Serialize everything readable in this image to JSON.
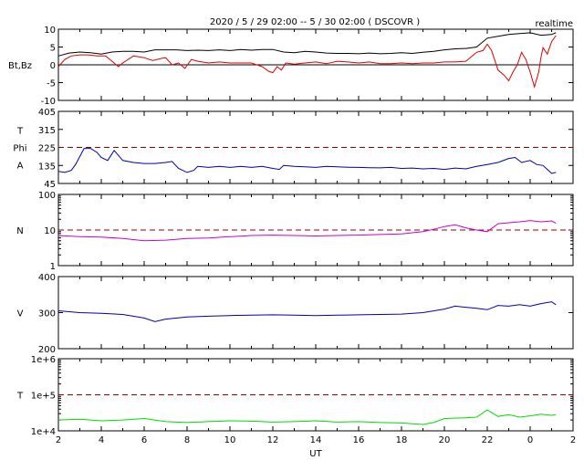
{
  "chart_data": {
    "title": "2020 / 5 / 29  02:00 --  5 / 30  02:00 ( DSCOVR )",
    "badge": "realtime",
    "xlabel": "UT",
    "x_ticks": [
      "2",
      "4",
      "6",
      "8",
      "10",
      "12",
      "14",
      "16",
      "18",
      "20",
      "22",
      "0",
      "2"
    ],
    "x_range": [
      2,
      26
    ],
    "grid": false,
    "panels": [
      {
        "type": "line",
        "ylabel_lines": [
          "Bt,Bz"
        ],
        "yticks": [
          "10",
          "5",
          "0",
          "-5",
          "-10"
        ],
        "ylim": [
          -10,
          10
        ],
        "zero_line": 0,
        "series": [
          {
            "key": "Bt",
            "color": "#000000",
            "x": [
              2.0,
              2.5,
              3.0,
              3.5,
              4.0,
              4.5,
              5.0,
              5.5,
              6.0,
              6.5,
              7.0,
              7.5,
              8.0,
              8.5,
              9.0,
              9.5,
              10.0,
              10.5,
              11.0,
              11.5,
              12.0,
              12.5,
              13.0,
              13.5,
              14.0,
              14.5,
              15.0,
              15.5,
              16.0,
              16.5,
              17.0,
              17.5,
              18.0,
              18.5,
              19.0,
              19.5,
              20.0,
              20.5,
              21.0,
              21.5,
              22.0,
              22.5,
              23.0,
              23.5,
              24.0,
              24.5,
              25.0,
              25.2
            ],
            "y": [
              2.5,
              3.3,
              3.6,
              3.4,
              3.0,
              3.6,
              3.8,
              3.8,
              3.6,
              4.2,
              4.2,
              4.2,
              4.0,
              4.1,
              4.0,
              4.2,
              4.0,
              4.3,
              4.1,
              4.3,
              4.3,
              3.6,
              3.4,
              3.8,
              3.6,
              3.3,
              3.2,
              3.2,
              3.1,
              3.3,
              3.1,
              3.2,
              3.4,
              3.2,
              3.5,
              3.8,
              4.2,
              4.5,
              4.6,
              5.0,
              7.5,
              8.0,
              8.5,
              8.8,
              9.0,
              8.3,
              8.5,
              9.0
            ]
          },
          {
            "key": "Bz",
            "color": "#e00000",
            "x": [
              2.0,
              2.3,
              2.6,
              3.0,
              3.4,
              3.8,
              4.2,
              4.5,
              4.8,
              5.0,
              5.5,
              6.0,
              6.4,
              6.8,
              7.0,
              7.3,
              7.6,
              7.9,
              8.2,
              8.5,
              9.0,
              9.5,
              10.0,
              10.5,
              11.0,
              11.5,
              11.8,
              12.0,
              12.2,
              12.4,
              12.6,
              13.0,
              13.5,
              14.0,
              14.5,
              15.0,
              15.5,
              16.0,
              16.5,
              17.0,
              17.5,
              18.0,
              18.5,
              19.0,
              19.5,
              20.0,
              20.5,
              21.0,
              21.5,
              21.8,
              22.0,
              22.2,
              22.5,
              22.8,
              23.0,
              23.2,
              23.4,
              23.6,
              23.8,
              24.0,
              24.2,
              24.4,
              24.5,
              24.6,
              24.8,
              25.0,
              25.2
            ],
            "y": [
              -0.5,
              1.5,
              2.5,
              2.8,
              2.8,
              2.5,
              2.5,
              1.0,
              -0.5,
              0.5,
              2.5,
              2.0,
              1.2,
              1.8,
              2.0,
              0.0,
              0.5,
              -1.0,
              1.5,
              1.0,
              0.5,
              0.8,
              0.5,
              0.5,
              0.5,
              -0.5,
              -1.8,
              -2.2,
              -0.5,
              -1.5,
              0.5,
              0.2,
              0.5,
              0.8,
              0.3,
              1.0,
              0.8,
              0.5,
              0.8,
              0.3,
              0.3,
              0.5,
              0.3,
              0.5,
              0.5,
              0.8,
              0.8,
              1.0,
              3.5,
              4.0,
              5.8,
              4.0,
              -1.5,
              -3.0,
              -4.5,
              -2.0,
              0.0,
              3.5,
              1.5,
              -2.0,
              -6.2,
              -2.0,
              2.0,
              4.8,
              3.0,
              6.5,
              8.2
            ]
          }
        ]
      },
      {
        "type": "line",
        "ylabel_lines": [
          "T",
          "Phi",
          "A"
        ],
        "yticks": [
          "405",
          "315",
          "225",
          "135",
          "45"
        ],
        "ylim": [
          45,
          405
        ],
        "reference_line": {
          "value": 225,
          "color": "#990000",
          "style": "dashed"
        },
        "series": [
          {
            "key": "Phi",
            "color": "#0000b0",
            "x": [
              2.0,
              2.3,
              2.6,
              2.8,
              3.0,
              3.2,
              3.5,
              3.8,
              4.0,
              4.3,
              4.6,
              5.0,
              5.5,
              6.0,
              6.5,
              7.0,
              7.3,
              7.6,
              8.0,
              8.3,
              8.5,
              9.0,
              9.5,
              10.0,
              10.5,
              11.0,
              11.5,
              12.0,
              12.3,
              12.5,
              13.0,
              13.5,
              14.0,
              14.5,
              15.0,
              15.5,
              16.0,
              16.5,
              17.0,
              17.5,
              18.0,
              18.5,
              19.0,
              19.5,
              20.0,
              20.5,
              21.0,
              21.5,
              22.0,
              22.5,
              23.0,
              23.3,
              23.6,
              24.0,
              24.3,
              24.6,
              24.8,
              25.0,
              25.2
            ],
            "y": [
              105,
              100,
              110,
              140,
              180,
              220,
              220,
              200,
              175,
              160,
              210,
              160,
              150,
              145,
              145,
              150,
              155,
              120,
              100,
              110,
              130,
              125,
              130,
              125,
              130,
              125,
              130,
              120,
              115,
              135,
              130,
              128,
              125,
              130,
              128,
              126,
              125,
              124,
              123,
              125,
              120,
              122,
              118,
              120,
              115,
              122,
              118,
              130,
              140,
              150,
              170,
              175,
              150,
              160,
              140,
              135,
              115,
              95,
              100
            ]
          }
        ]
      },
      {
        "type": "line",
        "log": true,
        "ylabel_lines": [
          "N"
        ],
        "yticks": [
          "100",
          "10",
          "1"
        ],
        "ylim": [
          1,
          100
        ],
        "reference_line": {
          "value": 10,
          "color": "#990000",
          "style": "dashed"
        },
        "series": [
          {
            "key": "N",
            "color": "#cc00cc",
            "x": [
              2,
              3,
              4,
              5,
              6,
              7,
              8,
              9,
              10,
              11,
              12,
              13,
              14,
              15,
              16,
              17,
              18,
              19,
              19.5,
              20,
              20.5,
              21,
              21.5,
              22,
              22.5,
              23,
              23.5,
              24,
              24.5,
              25,
              25.2
            ],
            "y": [
              7.0,
              6.5,
              6.3,
              5.8,
              5.0,
              5.2,
              5.8,
              6.0,
              6.5,
              7.0,
              7.2,
              7.0,
              6.8,
              7.0,
              7.2,
              7.5,
              7.8,
              9.0,
              10.5,
              12.5,
              14.0,
              11.5,
              10.0,
              9.0,
              15.0,
              16.0,
              17.0,
              18.5,
              17.0,
              18.0,
              15.5
            ]
          }
        ]
      },
      {
        "type": "line",
        "ylabel_lines": [
          "V"
        ],
        "yticks": [
          "400",
          "300",
          "200"
        ],
        "ylim": [
          200,
          400
        ],
        "series": [
          {
            "key": "V",
            "color": "#0000b0",
            "x": [
              2,
              3,
              4,
              5,
              6,
              6.5,
              7,
              8,
              9,
              10,
              11,
              12,
              13,
              14,
              15,
              16,
              17,
              18,
              19,
              20,
              20.5,
              21,
              21.5,
              22,
              22.5,
              23,
              23.5,
              24,
              24.5,
              25,
              25.2
            ],
            "y": [
              305,
              300,
              298,
              295,
              285,
              275,
              282,
              288,
              290,
              292,
              293,
              294,
              293,
              292,
              293,
              294,
              295,
              296,
              300,
              310,
              318,
              315,
              312,
              308,
              320,
              318,
              322,
              318,
              325,
              330,
              322
            ]
          }
        ]
      },
      {
        "type": "line",
        "log": true,
        "ylabel_lines": [
          "T"
        ],
        "yticks": [
          "1e+6",
          "1e+5",
          "1e+4"
        ],
        "ylim": [
          10000,
          1000000
        ],
        "reference_line": {
          "value": 100000,
          "color": "#990000",
          "style": "dashed"
        },
        "series": [
          {
            "key": "T",
            "color": "#00dd00",
            "x": [
              2,
              3,
              4,
              5,
              6,
              7,
              8,
              9,
              10,
              11,
              12,
              13,
              14,
              15,
              16,
              17,
              18,
              19,
              19.5,
              20,
              21,
              21.5,
              22,
              22.5,
              23,
              23.5,
              24,
              24.5,
              25,
              25.2
            ],
            "y": [
              20000,
              21000,
              19000,
              20000,
              22000,
              18000,
              17000,
              18000,
              19000,
              18500,
              17500,
              18000,
              19000,
              17500,
              18000,
              17000,
              16500,
              15000,
              17000,
              22000,
              23000,
              24000,
              38000,
              25000,
              28000,
              24000,
              26000,
              29000,
              27000,
              28000
            ]
          }
        ]
      }
    ]
  }
}
